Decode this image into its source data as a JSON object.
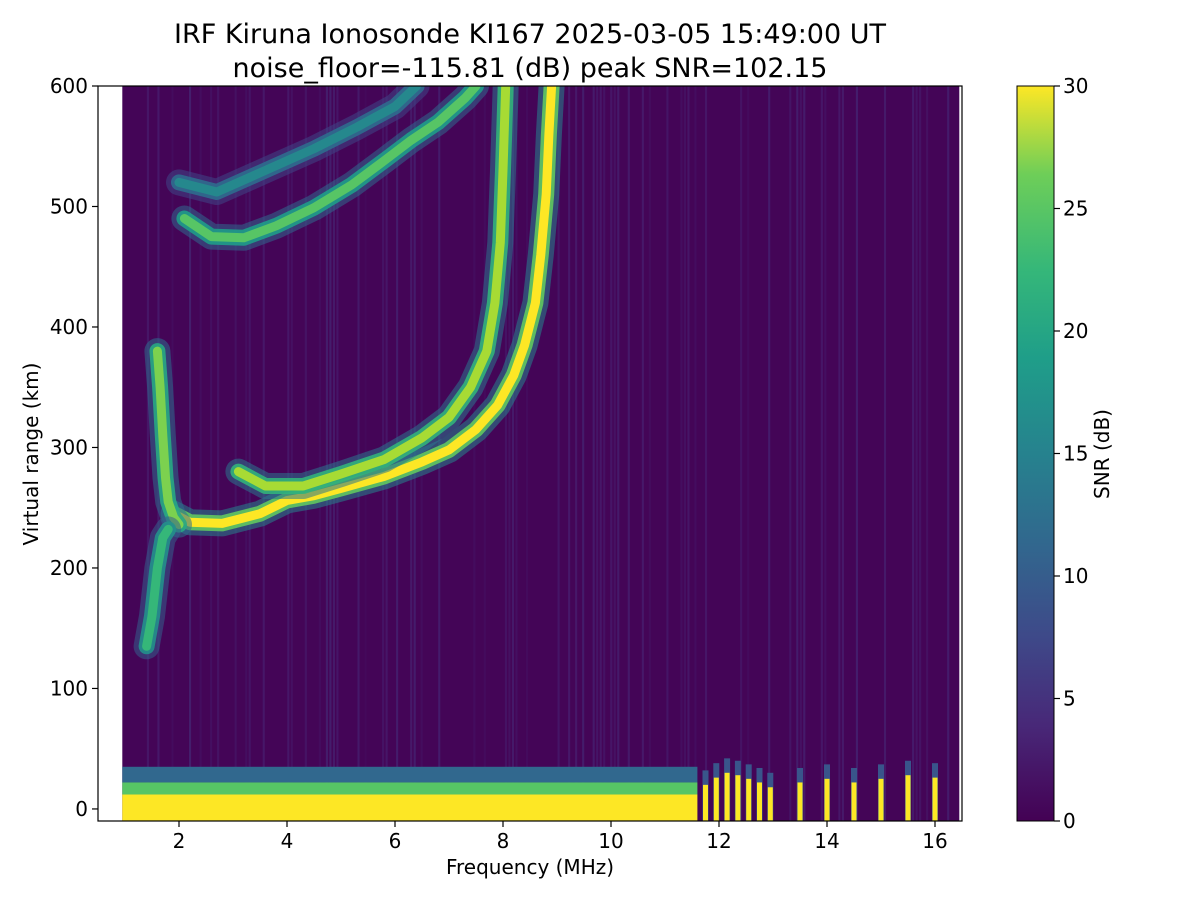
{
  "chart_data": {
    "type": "heatmap",
    "title": "IRF Kiruna Ionosonde KI167 2025-03-05 15:49:00  UT",
    "subtitle": "noise_floor=-115.81 (dB) peak SNR=102.15",
    "xlabel": "Frequency (MHz)",
    "ylabel": "Virtual range (km)",
    "colorbar_label": "SNR (dB)",
    "xlim": [
      0.5,
      16.5
    ],
    "ylim": [
      -10,
      600
    ],
    "clim": [
      0,
      30
    ],
    "x_ticks": [
      2,
      4,
      6,
      8,
      10,
      12,
      14,
      16
    ],
    "x_tick_labels": [
      "2",
      "4",
      "6",
      "8",
      "10",
      "12",
      "14",
      "16"
    ],
    "y_ticks": [
      0,
      100,
      200,
      300,
      400,
      500,
      600
    ],
    "y_tick_labels": [
      "0",
      "100",
      "200",
      "300",
      "400",
      "500",
      "600"
    ],
    "colorbar_ticks": [
      0,
      5,
      10,
      15,
      20,
      25,
      30
    ],
    "colorbar_tick_labels": [
      "0",
      "5",
      "10",
      "15",
      "20",
      "25",
      "30"
    ],
    "colormap": "viridis",
    "colormap_stops": [
      "#440154",
      "#3b528b",
      "#21918c",
      "#5ec962",
      "#fde725"
    ],
    "data_x_range": [
      0.95,
      16.45
    ],
    "traces": [
      {
        "description": "O-mode F-layer trace",
        "snr": 30,
        "points": [
          [
            1.9,
            245
          ],
          [
            2.2,
            238
          ],
          [
            2.8,
            237
          ],
          [
            3.5,
            245
          ],
          [
            4.0,
            256
          ],
          [
            4.5,
            260
          ],
          [
            5.0,
            266
          ],
          [
            5.8,
            276
          ],
          [
            6.5,
            288
          ],
          [
            7.0,
            298
          ],
          [
            7.5,
            315
          ],
          [
            7.9,
            335
          ],
          [
            8.2,
            360
          ],
          [
            8.4,
            385
          ],
          [
            8.6,
            420
          ],
          [
            8.7,
            460
          ],
          [
            8.8,
            510
          ],
          [
            8.85,
            560
          ],
          [
            8.9,
            600
          ]
        ]
      },
      {
        "description": "X-mode F-layer trace",
        "snr": 26,
        "points": [
          [
            3.1,
            280
          ],
          [
            3.6,
            268
          ],
          [
            4.3,
            268
          ],
          [
            5.0,
            278
          ],
          [
            5.8,
            290
          ],
          [
            6.5,
            308
          ],
          [
            7.0,
            325
          ],
          [
            7.4,
            350
          ],
          [
            7.7,
            380
          ],
          [
            7.85,
            420
          ],
          [
            7.95,
            470
          ],
          [
            8.0,
            530
          ],
          [
            8.05,
            600
          ]
        ]
      },
      {
        "description": "Multi-hop echo trace",
        "snr": 22,
        "points": [
          [
            2.1,
            490
          ],
          [
            2.6,
            475
          ],
          [
            3.2,
            474
          ],
          [
            3.8,
            484
          ],
          [
            4.5,
            499
          ],
          [
            5.2,
            518
          ],
          [
            5.8,
            538
          ],
          [
            6.3,
            555
          ],
          [
            6.8,
            570
          ],
          [
            7.3,
            590
          ],
          [
            7.5,
            600
          ]
        ]
      },
      {
        "description": "Upper faint trace",
        "snr": 14,
        "points": [
          [
            2.0,
            520
          ],
          [
            2.7,
            512
          ],
          [
            3.5,
            528
          ],
          [
            4.5,
            548
          ],
          [
            5.3,
            566
          ],
          [
            6.0,
            583
          ],
          [
            6.4,
            600
          ]
        ]
      },
      {
        "description": "Low-frequency cusp trace",
        "snr": 24,
        "points": [
          [
            1.6,
            380
          ],
          [
            1.65,
            350
          ],
          [
            1.7,
            310
          ],
          [
            1.75,
            275
          ],
          [
            1.8,
            255
          ],
          [
            1.9,
            242
          ],
          [
            2.0,
            236
          ]
        ]
      },
      {
        "description": "Sporadic trace",
        "snr": 20,
        "points": [
          [
            1.4,
            135
          ],
          [
            1.5,
            160
          ],
          [
            1.6,
            200
          ],
          [
            1.7,
            225
          ],
          [
            1.8,
            232
          ]
        ]
      }
    ],
    "ground_band": {
      "description": "Strong near-zero-range return",
      "x_range": [
        0.95,
        11.6
      ],
      "y_range": [
        -10,
        12
      ],
      "snr": 30
    },
    "ground_spikes": [
      {
        "x": 11.75,
        "height": 20
      },
      {
        "x": 11.95,
        "height": 26
      },
      {
        "x": 12.15,
        "height": 30
      },
      {
        "x": 12.35,
        "height": 28
      },
      {
        "x": 12.55,
        "height": 25
      },
      {
        "x": 12.75,
        "height": 22
      },
      {
        "x": 12.95,
        "height": 18
      },
      {
        "x": 13.5,
        "height": 22
      },
      {
        "x": 14.0,
        "height": 25
      },
      {
        "x": 14.5,
        "height": 22
      },
      {
        "x": 15.0,
        "height": 25
      },
      {
        "x": 15.5,
        "height": 28
      },
      {
        "x": 16.0,
        "height": 26
      }
    ]
  }
}
